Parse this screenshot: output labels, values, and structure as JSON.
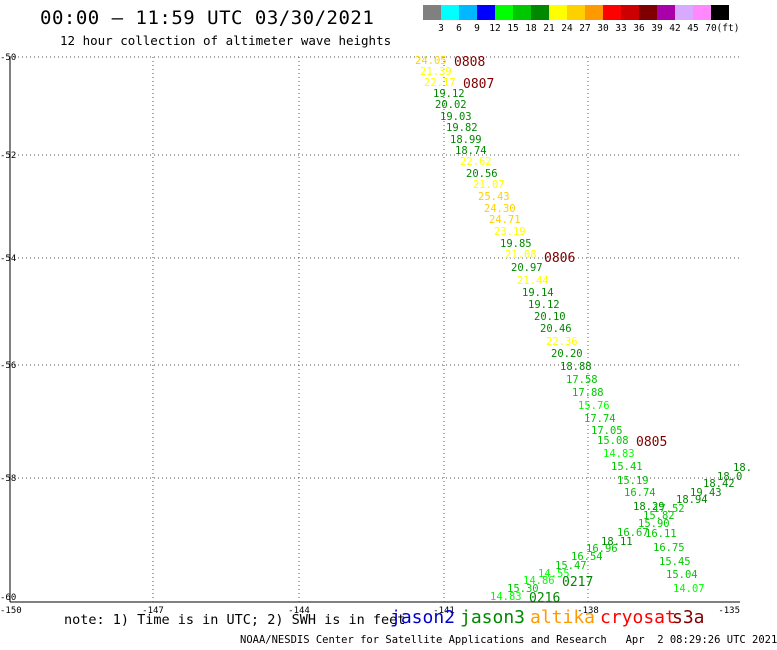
{
  "header": {
    "title": "00:00 – 11:59 UTC 03/30/2021",
    "subtitle": "12 hour collection of altimeter wave heights"
  },
  "scale": {
    "unit": "(ft)",
    "labels": [
      "3",
      "6",
      "9",
      "12",
      "15",
      "18",
      "21",
      "24",
      "27",
      "30",
      "33",
      "36",
      "39",
      "42",
      "45",
      "70"
    ],
    "colors": [
      "#808080",
      "#00ffff",
      "#00b8ff",
      "#0000ff",
      "#00ff00",
      "#00c800",
      "#008800",
      "#ffff00",
      "#ffd000",
      "#ff9900",
      "#ff0000",
      "#cc0000",
      "#800000",
      "#aa00aa",
      "#d8aaff",
      "#ff88ff",
      "#000000"
    ]
  },
  "map": {
    "lat_labels": [
      "-50",
      "-52",
      "-54",
      "-56",
      "-58",
      "-60"
    ],
    "lon_labels": [
      "-150",
      "-147",
      "-144",
      "-141",
      "-138",
      "-135"
    ]
  },
  "track_times": [
    {
      "text": "0808",
      "color": "#800000"
    },
    {
      "text": "0807",
      "color": "#800000"
    },
    {
      "text": "0806",
      "color": "#800000"
    },
    {
      "text": "0805",
      "color": "#800000"
    },
    {
      "text": "0217",
      "color": "#008800"
    },
    {
      "text": "0216",
      "color": "#008800"
    }
  ],
  "wave_labels": [
    {
      "text": "24.05",
      "color": "#ffd000"
    },
    {
      "text": "21.39",
      "color": "#ffff00"
    },
    {
      "text": "22.17",
      "color": "#ffff00"
    },
    {
      "text": "19.12",
      "color": "#008800"
    },
    {
      "text": "20.02",
      "color": "#008800"
    },
    {
      "text": "19.03",
      "color": "#008800"
    },
    {
      "text": "19.82",
      "color": "#008800"
    },
    {
      "text": "18.99",
      "color": "#008800"
    },
    {
      "text": "18.74",
      "color": "#008800"
    },
    {
      "text": "22.62",
      "color": "#ffff00"
    },
    {
      "text": "20.56",
      "color": "#008800"
    },
    {
      "text": "21.07",
      "color": "#ffff00"
    },
    {
      "text": "25.43",
      "color": "#ffd000"
    },
    {
      "text": "24.30",
      "color": "#ffd000"
    },
    {
      "text": "24.71",
      "color": "#ffd000"
    },
    {
      "text": "23.19",
      "color": "#ffff00"
    },
    {
      "text": "19.85",
      "color": "#008800"
    },
    {
      "text": "21.08",
      "color": "#ffff00"
    },
    {
      "text": "20.97",
      "color": "#008800"
    },
    {
      "text": "21.44",
      "color": "#ffff00"
    },
    {
      "text": "19.14",
      "color": "#008800"
    },
    {
      "text": "19.12",
      "color": "#008800"
    },
    {
      "text": "20.10",
      "color": "#008800"
    },
    {
      "text": "20.46",
      "color": "#008800"
    },
    {
      "text": "22.36",
      "color": "#ffff00"
    },
    {
      "text": "20.20",
      "color": "#008800"
    },
    {
      "text": "18.88",
      "color": "#008800"
    },
    {
      "text": "17.58",
      "color": "#00c800"
    },
    {
      "text": "17.88",
      "color": "#00c800"
    },
    {
      "text": "15.76",
      "color": "#00ff00"
    },
    {
      "text": "17.74",
      "color": "#00c800"
    },
    {
      "text": "17.05",
      "color": "#00c800"
    },
    {
      "text": "15.08",
      "color": "#00c800"
    },
    {
      "text": "14.83",
      "color": "#00ff00"
    },
    {
      "text": "15.41",
      "color": "#00c800"
    },
    {
      "text": "15.19",
      "color": "#00c800"
    },
    {
      "text": "16.74",
      "color": "#00c800"
    },
    {
      "text": "18.29",
      "color": "#008800"
    },
    {
      "text": "17.52",
      "color": "#00c800"
    },
    {
      "text": "15.82",
      "color": "#00c800"
    },
    {
      "text": "15.90",
      "color": "#00c800"
    },
    {
      "text": "16.67",
      "color": "#00c800"
    },
    {
      "text": "16.11",
      "color": "#00c800"
    },
    {
      "text": "16.75",
      "color": "#00c800"
    },
    {
      "text": "15.45",
      "color": "#00c800"
    },
    {
      "text": "15.04",
      "color": "#00c800"
    },
    {
      "text": "14.07",
      "color": "#00ff00"
    },
    {
      "text": "18.94",
      "color": "#008800"
    },
    {
      "text": "19.43",
      "color": "#008800"
    },
    {
      "text": "18.42",
      "color": "#008800"
    },
    {
      "text": "18.0",
      "color": "#008800"
    },
    {
      "text": "18.",
      "color": "#008800"
    },
    {
      "text": "18.11",
      "color": "#008800"
    },
    {
      "text": "16.96",
      "color": "#00c800"
    },
    {
      "text": "16.54",
      "color": "#00c800"
    },
    {
      "text": "15.47",
      "color": "#00c800"
    },
    {
      "text": "14.55",
      "color": "#00ff00"
    },
    {
      "text": "14.86",
      "color": "#00ff00"
    },
    {
      "text": "15.30",
      "color": "#00c800"
    },
    {
      "text": "14.83",
      "color": "#00ff00"
    }
  ],
  "footer": {
    "note": "note: 1) Time is in UTC; 2) SWH is in feet",
    "satellites": [
      {
        "name": "jason2",
        "color": "#0000cc"
      },
      {
        "name": "jason3",
        "color": "#008800"
      },
      {
        "name": "altika",
        "color": "#ff9900"
      },
      {
        "name": "cryosat",
        "color": "#ff0000"
      },
      {
        "name": "s3a",
        "color": "#800000"
      }
    ],
    "credit": "NOAA/NESDIS Center for Satellite Applications and Research   Apr  2 08:29:26 UTC 2021"
  }
}
